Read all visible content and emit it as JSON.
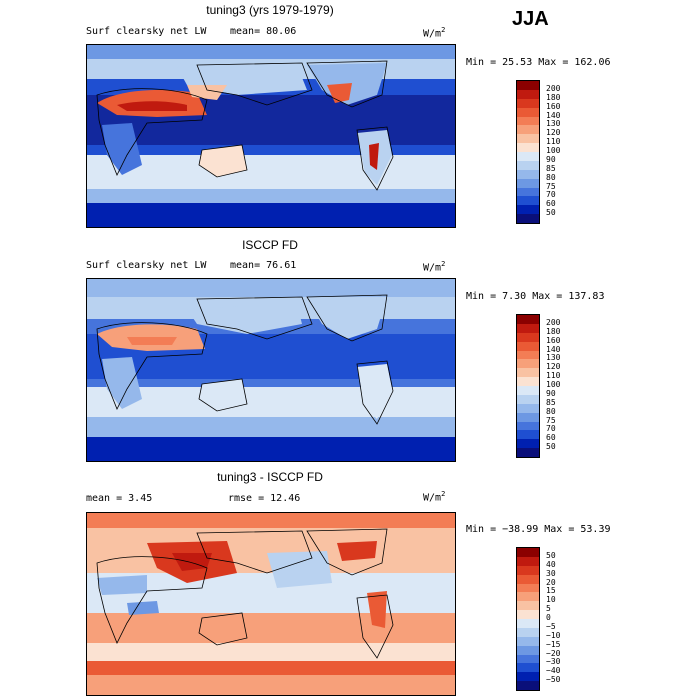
{
  "season": "JJA",
  "panels": [
    {
      "title": "tuning3 (yrs 1979-1979)",
      "variable": "Surf clearsky net LW",
      "mean_label": "mean=",
      "mean_value": "80.06",
      "units": "W/m",
      "units_sup": "2",
      "stats": "Min =  25.53 Max = 162.06",
      "colorbar": {
        "labels": [
          "200",
          "180",
          "160",
          "140",
          "130",
          "120",
          "110",
          "100",
          "90",
          "85",
          "80",
          "75",
          "70",
          "60",
          "50"
        ],
        "colors": [
          "#8b0000",
          "#c01a0f",
          "#d9381e",
          "#ea5a35",
          "#f37d55",
          "#f7a07a",
          "#f9c2a3",
          "#fbe2d2",
          "#dbe8f6",
          "#b9d2f0",
          "#95b8eb",
          "#6d98e3",
          "#4674dc",
          "#1f4fd1",
          "#0020b0",
          "#0a0f7a"
        ]
      },
      "map": "model"
    },
    {
      "title": "ISCCP FD",
      "variable": "Surf clearsky net LW",
      "mean_label": "mean=",
      "mean_value": "76.61",
      "units": "W/m",
      "units_sup": "2",
      "stats": "Min =   7.30 Max = 137.83",
      "colorbar": {
        "labels": [
          "200",
          "180",
          "160",
          "140",
          "130",
          "120",
          "110",
          "100",
          "90",
          "85",
          "80",
          "75",
          "70",
          "60",
          "50"
        ],
        "colors": [
          "#8b0000",
          "#c01a0f",
          "#d9381e",
          "#ea5a35",
          "#f37d55",
          "#f7a07a",
          "#f9c2a3",
          "#fbe2d2",
          "#dbe8f6",
          "#b9d2f0",
          "#95b8eb",
          "#6d98e3",
          "#4674dc",
          "#1f4fd1",
          "#0020b0",
          "#0a0f7a"
        ]
      },
      "map": "obs"
    },
    {
      "title": "tuning3 - ISCCP FD",
      "variable": "",
      "mean_label": "mean =",
      "mean_value": "3.45",
      "rmse_label": "rmse =",
      "rmse_value": "12.46",
      "units": "W/m",
      "units_sup": "2",
      "stats": "Min = −38.99 Max =  53.39",
      "colorbar": {
        "labels": [
          "50",
          "40",
          "30",
          "20",
          "15",
          "10",
          "5",
          "0",
          "−5",
          "−10",
          "−15",
          "−20",
          "−30",
          "−40",
          "−50"
        ],
        "colors": [
          "#8b0000",
          "#c01a0f",
          "#d9381e",
          "#ea5a35",
          "#f37d55",
          "#f7a07a",
          "#f9c2a3",
          "#fbe2d2",
          "#dbe8f6",
          "#b9d2f0",
          "#95b8eb",
          "#6d98e3",
          "#4674dc",
          "#1f4fd1",
          "#0020b0",
          "#0a0f7a"
        ]
      },
      "map": "diff"
    }
  ]
}
